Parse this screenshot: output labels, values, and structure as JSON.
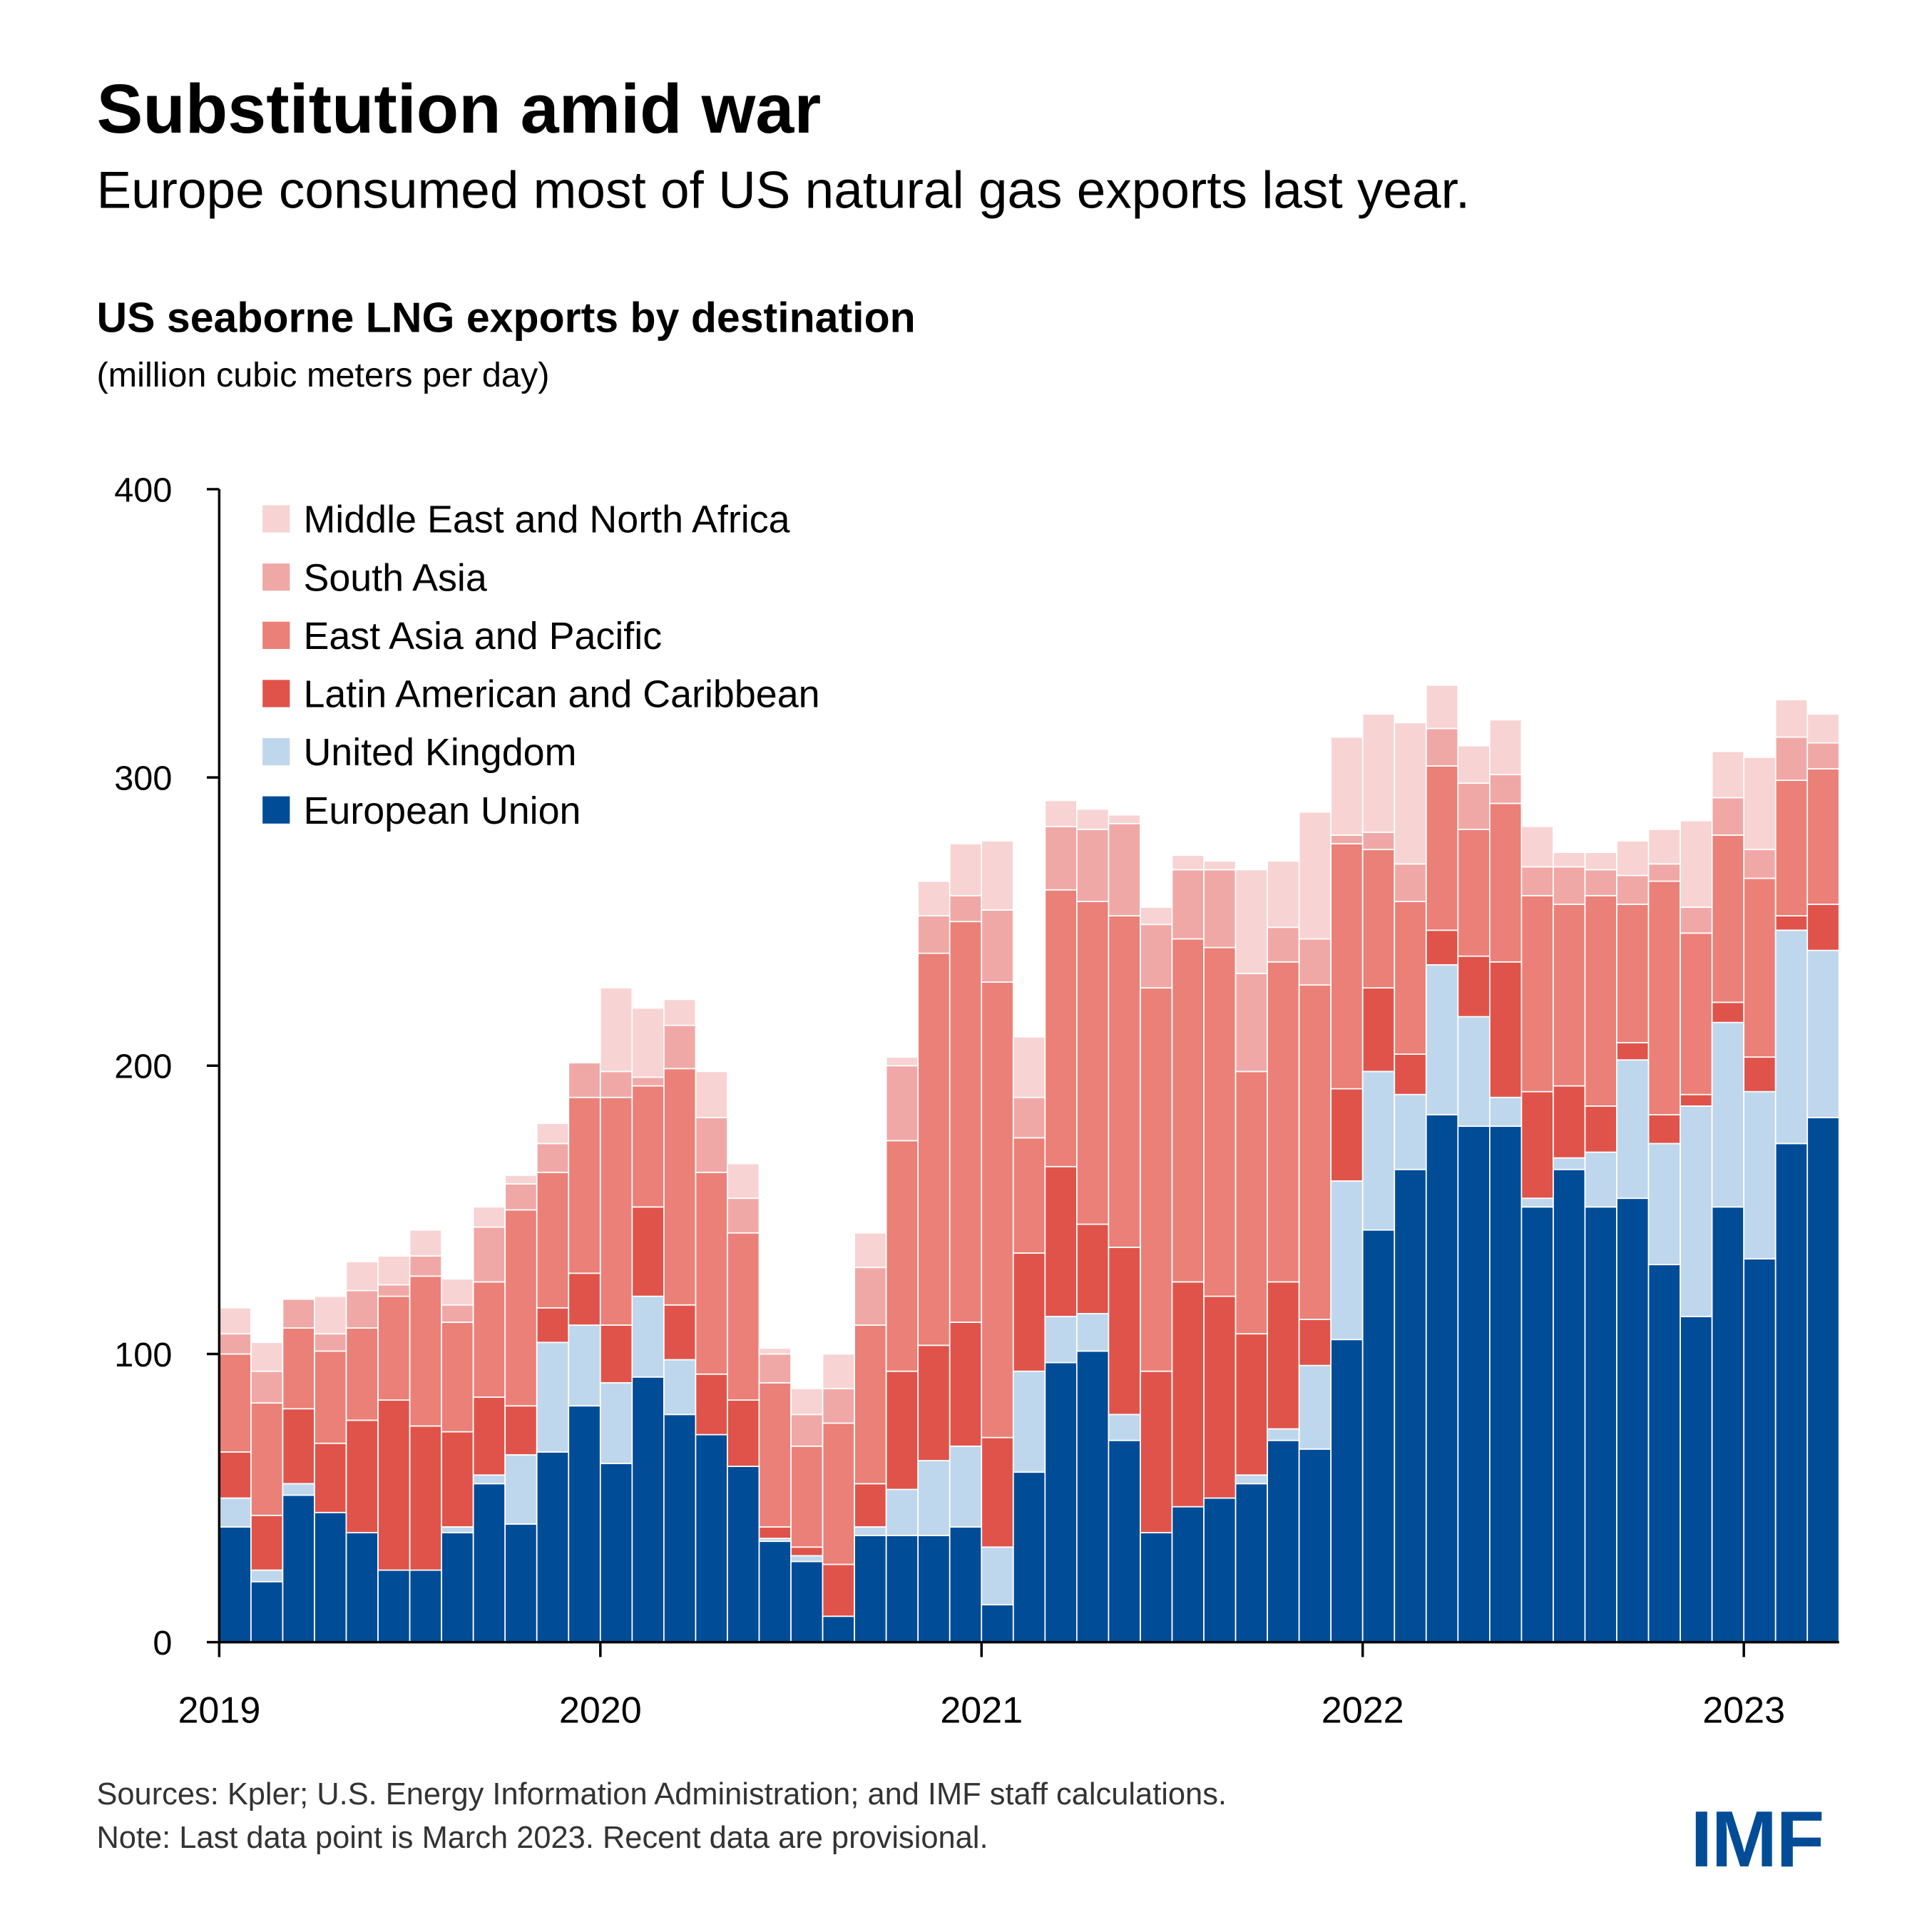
{
  "header": {
    "title": "Substitution amid war",
    "subtitle": "Europe consumed most of US natural gas exports last year."
  },
  "footer": {
    "sources": "Sources: Kpler; U.S. Energy Information Administration; and IMF staff calculations.",
    "note": "Note: Last data point is March 2023. Recent data are provisional.",
    "logo": "IMF"
  },
  "chart_data": {
    "type": "bar",
    "stacked": true,
    "title": "US seaborne LNG exports by destination",
    "ylabel": "(million cubic meters per day)",
    "xlabel": "",
    "ylim": [
      0,
      400
    ],
    "yticks": [
      "0",
      "100",
      "200",
      "300",
      "400"
    ],
    "xtick_labels": [
      "2019",
      "2020",
      "2021",
      "2022",
      "2023"
    ],
    "x_start": "2019-01",
    "x_end": "2023-03",
    "frequency": "monthly",
    "legend_position": "top-left",
    "series": [
      {
        "name": "European Union",
        "color": "#004c97",
        "values": [
          40,
          21,
          51,
          45,
          38,
          25,
          25,
          38,
          55,
          41,
          66,
          82,
          62,
          92,
          79,
          72,
          61,
          35,
          28,
          9,
          37,
          37,
          37,
          40,
          13,
          59,
          97,
          101,
          70,
          38,
          47,
          50,
          55,
          70,
          67,
          105,
          143,
          164,
          183,
          179,
          179,
          151,
          164,
          151,
          154,
          131,
          113,
          151,
          133,
          173,
          182
        ]
      },
      {
        "name": "United Kingdom",
        "color": "#bfd7ec",
        "values": [
          10,
          4,
          4,
          0,
          0,
          0,
          0,
          2,
          3,
          24,
          38,
          28,
          28,
          28,
          19,
          0,
          0,
          1,
          2,
          0,
          3,
          16,
          26,
          28,
          20,
          35,
          16,
          13,
          9,
          0,
          0,
          0,
          3,
          4,
          29,
          55,
          55,
          26,
          52,
          38,
          10,
          3,
          4,
          19,
          48,
          42,
          73,
          64,
          58,
          74,
          58
        ]
      },
      {
        "name": "Latin American and Caribbean",
        "color": "#e0534a",
        "values": [
          16,
          19,
          26,
          24,
          39,
          59,
          50,
          33,
          27,
          17,
          12,
          18,
          20,
          31,
          19,
          21,
          23,
          4,
          3,
          18,
          15,
          41,
          40,
          43,
          38,
          41,
          52,
          31,
          58,
          56,
          78,
          70,
          49,
          51,
          16,
          32,
          29,
          14,
          12,
          21,
          47,
          37,
          25,
          16,
          6,
          10,
          4,
          7,
          12,
          5,
          16
        ]
      },
      {
        "name": "East Asia and Pacific",
        "color": "#ea8077",
        "values": [
          34,
          39,
          28,
          32,
          32,
          36,
          52,
          38,
          40,
          68,
          47,
          61,
          79,
          42,
          82,
          70,
          58,
          50,
          35,
          49,
          55,
          80,
          136,
          139,
          158,
          40,
          96,
          112,
          115,
          133,
          119,
          121,
          91,
          111,
          116,
          85,
          48,
          53,
          57,
          44,
          55,
          68,
          63,
          73,
          48,
          81,
          56,
          58,
          62,
          47,
          47
        ]
      },
      {
        "name": "South Asia",
        "color": "#f0a8a6",
        "values": [
          7,
          11,
          10,
          6,
          13,
          4,
          7,
          6,
          19,
          9,
          10,
          12,
          9,
          3,
          15,
          19,
          12,
          10,
          11,
          12,
          20,
          26,
          13,
          9,
          25,
          14,
          22,
          25,
          32,
          22,
          24,
          27,
          34,
          12,
          16,
          3,
          6,
          13,
          13,
          16,
          10,
          10,
          13,
          9,
          10,
          6,
          9,
          13,
          10,
          15,
          9
        ]
      },
      {
        "name": "Middle East and North Africa",
        "color": "#f8d3d3",
        "values": [
          9,
          10,
          0,
          13,
          10,
          10,
          9,
          9,
          7,
          3,
          7,
          0,
          29,
          24,
          9,
          16,
          12,
          2,
          9,
          12,
          12,
          3,
          12,
          18,
          24,
          21,
          9,
          7,
          3,
          6,
          5,
          3,
          36,
          23,
          44,
          34,
          41,
          49,
          15,
          13,
          19,
          14,
          5,
          6,
          12,
          12,
          30,
          16,
          32,
          13,
          10
        ]
      }
    ]
  }
}
